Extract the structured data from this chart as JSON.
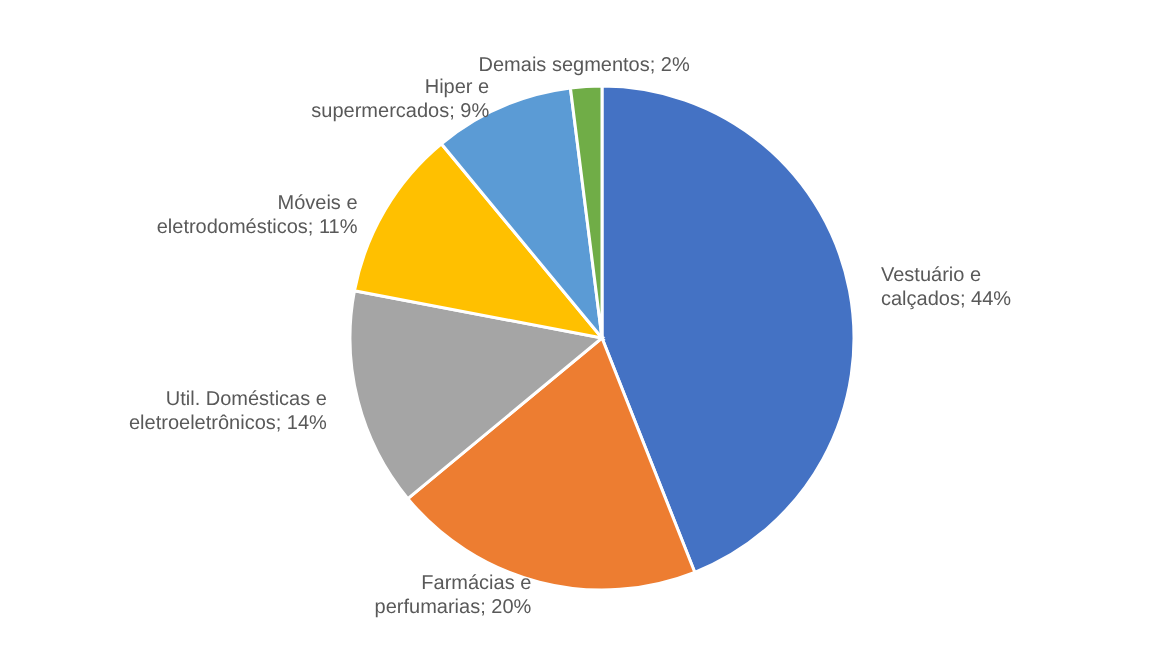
{
  "chart_data": {
    "type": "pie",
    "categories": [
      "Vestuário e calçados",
      "Farmácias e perfumarias",
      "Util. Domésticas e eletroeletrônicos",
      "Móveis e eletrodomésticos",
      "Hiper e supermercados",
      "Demais segmentos"
    ],
    "values": [
      44,
      20,
      14,
      11,
      9,
      2
    ],
    "value_labels": [
      "44%",
      "20%",
      "14%",
      "11%",
      "9%",
      "2%"
    ],
    "colors": [
      "#4472c4",
      "#ed7d31",
      "#a5a5a5",
      "#ffc000",
      "#5b9bd5",
      "#70ad47"
    ],
    "legend": false
  }
}
